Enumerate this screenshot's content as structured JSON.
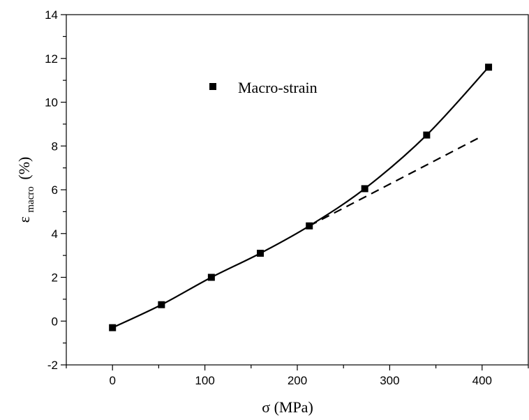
{
  "chart_data": {
    "type": "line",
    "xlabel": "σ (MPa)",
    "ylabel": {
      "main": "ε",
      "sub": "macro",
      "unit": "(%)"
    },
    "xlim": [
      -50,
      450
    ],
    "ylim": [
      -2,
      14
    ],
    "x_ticks": [
      0,
      100,
      200,
      300,
      400
    ],
    "y_ticks": [
      -2,
      0,
      2,
      4,
      6,
      8,
      10,
      12,
      14
    ],
    "grid": false,
    "legend_position": "top-left",
    "series": [
      {
        "name": "Macro-strain",
        "marker": "square",
        "x": [
          0,
          53,
          107,
          160,
          213,
          273,
          340,
          407
        ],
        "y": [
          -0.3,
          0.75,
          2.0,
          3.1,
          4.35,
          6.05,
          8.5,
          11.6
        ]
      }
    ],
    "fit_curve": {
      "style": "solid",
      "x": [
        0,
        53,
        107,
        160,
        213,
        273,
        340,
        407
      ],
      "y": [
        -0.3,
        0.75,
        2.0,
        3.1,
        4.35,
        6.05,
        8.5,
        11.6
      ]
    },
    "linear_extrapolation": {
      "style": "dashed",
      "x": [
        213,
        400
      ],
      "y": [
        4.35,
        8.45
      ]
    },
    "colors": {
      "axis": "#000000",
      "line": "#000000",
      "marker": "#000000"
    }
  }
}
